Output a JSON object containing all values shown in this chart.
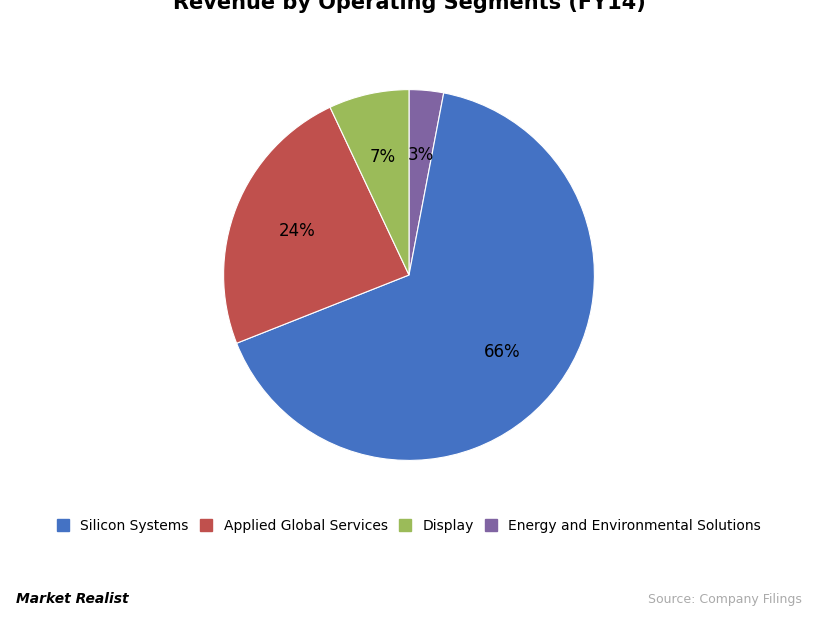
{
  "title": "Revenue by Operating Segments (FY14)",
  "segments": [
    "Silicon Systems",
    "Applied Global Services",
    "Display",
    "Energy and Environmental Solutions"
  ],
  "values": [
    66,
    24,
    7,
    3
  ],
  "colors": [
    "#4472C4",
    "#C0504D",
    "#9BBB59",
    "#8064A2"
  ],
  "labels": [
    "66%",
    "24%",
    "7%",
    "3%"
  ],
  "background_color": "#FFFFFF",
  "title_fontsize": 15,
  "legend_fontsize": 10,
  "label_fontsize": 12,
  "watermark_left": "Market Realist",
  "watermark_right": "Source: Company Filings"
}
